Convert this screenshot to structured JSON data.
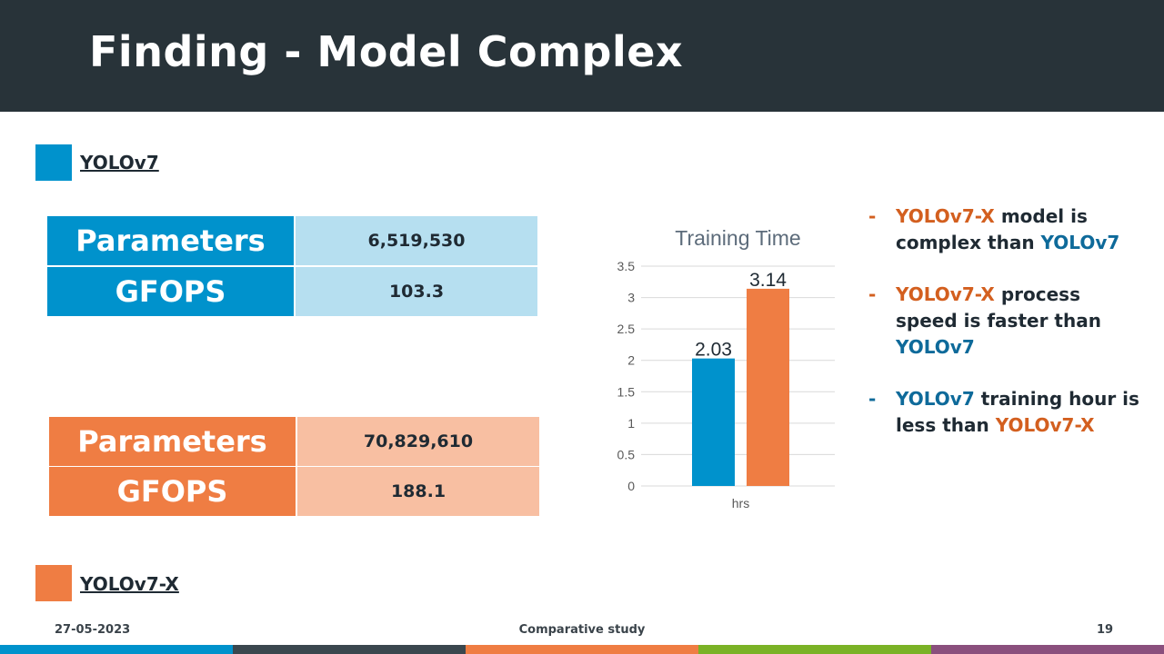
{
  "slide": {
    "title": "Finding - Model Complex",
    "page_number": "19"
  },
  "legend": {
    "yolov7": {
      "label": "YOLOv7",
      "color": "#0092cc"
    },
    "yolov7x": {
      "label": "YOLOv7-X",
      "color": "#ef7d43"
    }
  },
  "tables": {
    "yolov7": {
      "rows": [
        {
          "key": "Parameters",
          "value": "6,519,530"
        },
        {
          "key": "GFOPS",
          "value": "103.3"
        }
      ],
      "key_color": "#0092cc",
      "value_color": "#b6dff0"
    },
    "yolov7x": {
      "rows": [
        {
          "key": "Parameters",
          "value": "70,829,610"
        },
        {
          "key": "GFOPS",
          "value": "188.1"
        }
      ],
      "key_color": "#ef7d43",
      "value_color": "#f8bfa2"
    }
  },
  "chart_data": {
    "type": "bar",
    "title": "Training Time",
    "categories": [
      "hrs"
    ],
    "series": [
      {
        "values": [
          2.03
        ],
        "color": "#0092cc"
      },
      {
        "values": [
          3.14
        ],
        "color": "#ef7d43"
      }
    ],
    "ylim": [
      0,
      3.5
    ],
    "yticks": [
      "0",
      "0.5",
      "1",
      "1.5",
      "2",
      "2.5",
      "3",
      "3.5"
    ],
    "data_labels": [
      "2.03",
      "3.14"
    ],
    "grid": true
  },
  "bullets": [
    {
      "dash": "-",
      "dash_color": "#d35f1f",
      "parts": [
        {
          "text": "YOLOv7-X",
          "cls": "c-orange"
        },
        {
          "text": " model is complex than ",
          "cls": ""
        },
        {
          "text": "YOLOv7",
          "cls": "c-blue"
        }
      ]
    },
    {
      "dash": "-",
      "dash_color": "#d35f1f",
      "parts": [
        {
          "text": "YOLOv7-X",
          "cls": "c-orange"
        },
        {
          "text": " process speed is faster than ",
          "cls": ""
        },
        {
          "text": "YOLOv7",
          "cls": "c-blue"
        }
      ]
    },
    {
      "dash": "-",
      "dash_color": "#0e6a9a",
      "parts": [
        {
          "text": "YOLOv7",
          "cls": "c-blue"
        },
        {
          "text": " training hour is less than ",
          "cls": ""
        },
        {
          "text": "YOLOv7-X",
          "cls": "c-orange"
        }
      ]
    }
  ],
  "footer": {
    "date": "27-05-2023",
    "center": "Comparative study"
  },
  "stripe_colors": [
    "#0092cc",
    "#3a474e",
    "#ef7d43",
    "#7ab226",
    "#8a4f7d"
  ]
}
